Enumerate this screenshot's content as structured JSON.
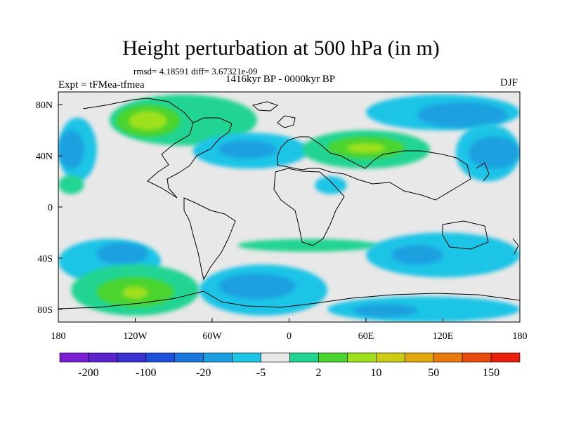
{
  "header": {
    "title": "Height perturbation at 500 hPa (in m)",
    "stats": "rmsd= 4.18591 diff= 3.67321e-09",
    "period": "1416kyr BP - 0000kyr BP",
    "experiment": "Expt = tFMea-tfmea",
    "season": "DJF"
  },
  "chart_data": {
    "type": "heatmap",
    "title": "Height perturbation at 500 hPa (in m)",
    "subtitle": "1416kyr BP - 0000kyr BP",
    "xlabel": "",
    "ylabel": "",
    "xlim": [
      -180,
      180
    ],
    "ylim": [
      -90,
      90
    ],
    "projection": "cylindrical equidistant",
    "x_ticks": [
      {
        "value": -180,
        "label": "180"
      },
      {
        "value": -120,
        "label": "120W"
      },
      {
        "value": -60,
        "label": "60W"
      },
      {
        "value": 0,
        "label": "0"
      },
      {
        "value": 60,
        "label": "60E"
      },
      {
        "value": 120,
        "label": "120E"
      },
      {
        "value": 180,
        "label": "180"
      }
    ],
    "y_ticks": [
      {
        "value": 80,
        "label": "80N"
      },
      {
        "value": 40,
        "label": "40N"
      },
      {
        "value": 0,
        "label": "0"
      },
      {
        "value": -40,
        "label": "40S"
      },
      {
        "value": -80,
        "label": "80S"
      }
    ],
    "colorbar": {
      "colors": [
        "#7a1ed6",
        "#5a23cc",
        "#3a2fd0",
        "#1e4fd8",
        "#1a78dc",
        "#1aa0e0",
        "#1cc4e6",
        "#e8e8e8",
        "#22d492",
        "#4cd42e",
        "#9ee01c",
        "#cccc12",
        "#e0a80c",
        "#e87a0c",
        "#e84c0c",
        "#e8200c"
      ],
      "labels": [
        {
          "index": 1,
          "text": "-200"
        },
        {
          "index": 3,
          "text": "-100"
        },
        {
          "index": 5,
          "text": "-20"
        },
        {
          "index": 7,
          "text": "-5"
        },
        {
          "index": 9,
          "text": "2"
        },
        {
          "index": 11,
          "text": "10"
        },
        {
          "index": 13,
          "text": "50"
        },
        {
          "index": 15,
          "text": "150"
        }
      ]
    },
    "neutral_color": "#e8e8e8",
    "regions": [
      {
        "name": "arctic-canada-positive",
        "lon": [
          -140,
          -25
        ],
        "lat": [
          48,
          88
        ],
        "level": 1,
        "color": "#22d492"
      },
      {
        "name": "canada-positive-core",
        "lon": [
          -135,
          -85
        ],
        "lat": [
          55,
          80
        ],
        "level": 2,
        "color": "#4cd42e"
      },
      {
        "name": "canada-positive-peak",
        "lon": [
          -125,
          -95
        ],
        "lat": [
          60,
          75
        ],
        "level": 3,
        "color": "#9ee01c"
      },
      {
        "name": "north-atlantic-negative",
        "lon": [
          -75,
          15
        ],
        "lat": [
          30,
          58
        ],
        "level": -1,
        "color": "#1cc4e6"
      },
      {
        "name": "north-atlantic-negative-core",
        "lon": [
          -55,
          -10
        ],
        "lat": [
          38,
          52
        ],
        "level": -2,
        "color": "#1aa0e0"
      },
      {
        "name": "north-pacific-west-negative",
        "lon": [
          -180,
          -150
        ],
        "lat": [
          20,
          70
        ],
        "level": -1,
        "color": "#1cc4e6"
      },
      {
        "name": "north-pacific-west-negative-core",
        "lon": [
          -180,
          -160
        ],
        "lat": [
          30,
          60
        ],
        "level": -2,
        "color": "#1aa0e0"
      },
      {
        "name": "eurasia-positive",
        "lon": [
          10,
          110
        ],
        "lat": [
          30,
          60
        ],
        "level": 1,
        "color": "#22d492"
      },
      {
        "name": "eurasia-positive-core",
        "lon": [
          30,
          90
        ],
        "lat": [
          38,
          55
        ],
        "level": 2,
        "color": "#4cd42e"
      },
      {
        "name": "eurasia-positive-peak",
        "lon": [
          45,
          75
        ],
        "lat": [
          42,
          50
        ],
        "level": 3,
        "color": "#9ee01c"
      },
      {
        "name": "siberia-negative",
        "lon": [
          60,
          180
        ],
        "lat": [
          60,
          88
        ],
        "level": -1,
        "color": "#1cc4e6"
      },
      {
        "name": "siberia-negative-core",
        "lon": [
          100,
          170
        ],
        "lat": [
          62,
          82
        ],
        "level": -2,
        "color": "#1aa0e0"
      },
      {
        "name": "north-pacific-east-negative",
        "lon": [
          130,
          180
        ],
        "lat": [
          20,
          65
        ],
        "level": -1,
        "color": "#1cc4e6"
      },
      {
        "name": "north-pacific-east-negative-core",
        "lon": [
          140,
          180
        ],
        "lat": [
          30,
          55
        ],
        "level": -2,
        "color": "#1aa0e0"
      },
      {
        "name": "north-africa-negative",
        "lon": [
          20,
          45
        ],
        "lat": [
          10,
          24
        ],
        "level": -1,
        "color": "#1cc4e6"
      },
      {
        "name": "east-pacific-tropic-positive",
        "lon": [
          -180,
          -160
        ],
        "lat": [
          10,
          25
        ],
        "level": 1,
        "color": "#22d492"
      },
      {
        "name": "south-pacific-negative",
        "lon": [
          -180,
          -100
        ],
        "lat": [
          -60,
          -25
        ],
        "level": -1,
        "color": "#1cc4e6"
      },
      {
        "name": "south-pacific-negative-core",
        "lon": [
          -150,
          -110
        ],
        "lat": [
          -45,
          -28
        ],
        "level": -2,
        "color": "#1aa0e0"
      },
      {
        "name": "south-pacific-positive",
        "lon": [
          -170,
          -70
        ],
        "lat": [
          -85,
          -45
        ],
        "level": 1,
        "color": "#22d492"
      },
      {
        "name": "south-pacific-positive-core",
        "lon": [
          -150,
          -90
        ],
        "lat": [
          -78,
          -55
        ],
        "level": 2,
        "color": "#4cd42e"
      },
      {
        "name": "south-pacific-positive-peak",
        "lon": [
          -130,
          -110
        ],
        "lat": [
          -72,
          -62
        ],
        "level": 3,
        "color": "#9ee01c"
      },
      {
        "name": "south-atlantic-negative",
        "lon": [
          -70,
          30
        ],
        "lat": [
          -85,
          -45
        ],
        "level": -1,
        "color": "#1cc4e6"
      },
      {
        "name": "south-atlantic-negative-core",
        "lon": [
          -55,
          5
        ],
        "lat": [
          -72,
          -52
        ],
        "level": -2,
        "color": "#1aa0e0"
      },
      {
        "name": "south-atlantic-positive-band",
        "lon": [
          -40,
          70
        ],
        "lat": [
          -35,
          -25
        ],
        "level": 1,
        "color": "#22d492"
      },
      {
        "name": "indian-ocean-negative",
        "lon": [
          60,
          180
        ],
        "lat": [
          -55,
          -20
        ],
        "level": -1,
        "color": "#1cc4e6"
      },
      {
        "name": "indian-ocean-negative-core",
        "lon": [
          80,
          120
        ],
        "lat": [
          -45,
          -30
        ],
        "level": -2,
        "color": "#1aa0e0"
      },
      {
        "name": "southern-ocean-negative",
        "lon": [
          30,
          180
        ],
        "lat": [
          -90,
          -70
        ],
        "level": -1,
        "color": "#1cc4e6"
      },
      {
        "name": "southern-ocean-negative-core",
        "lon": [
          50,
          100
        ],
        "lat": [
          -86,
          -76
        ],
        "level": -2,
        "color": "#1aa0e0"
      }
    ],
    "grid": false
  }
}
